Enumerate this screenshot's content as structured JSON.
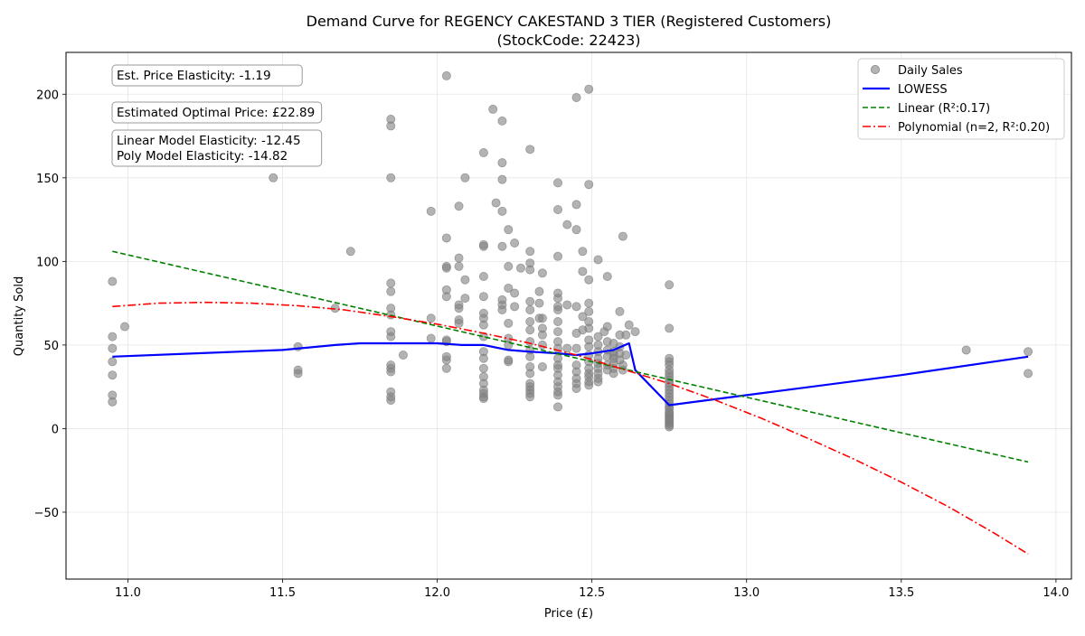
{
  "chart_data": {
    "type": "scatter",
    "title": [
      "Demand Curve for REGENCY CAKESTAND 3 TIER (Registered Customers)",
      "(StockCode: 22423)"
    ],
    "xlabel": "Price (£)",
    "ylabel": "Quantity Sold",
    "xlim": [
      10.8,
      14.05
    ],
    "ylim": [
      -90,
      225
    ],
    "xticks": [
      11.0,
      11.5,
      12.0,
      12.5,
      13.0,
      13.5,
      14.0
    ],
    "xtick_labels": [
      "11.0",
      "11.5",
      "12.0",
      "12.5",
      "13.0",
      "13.5",
      "14.0"
    ],
    "yticks": [
      -50,
      0,
      50,
      100,
      150,
      200
    ],
    "ytick_labels": [
      "−50",
      "0",
      "50",
      "100",
      "150",
      "200"
    ],
    "grid": true,
    "legend_position": "top-right",
    "colors": {
      "scatter": "#808080",
      "lowess": "#0000ff",
      "linear": "#008000",
      "poly": "#ff0000",
      "grid": "#e6e6e6"
    },
    "annotations": [
      [
        "Est. Price Elasticity: -1.19"
      ],
      [
        "Estimated Optimal Price: £22.89"
      ],
      [
        "Linear Model Elasticity: -12.45",
        "Poly Model Elasticity: -14.82"
      ]
    ],
    "series": [
      {
        "name": "Daily Sales",
        "kind": "scatter",
        "points": [
          [
            10.95,
            88
          ],
          [
            10.95,
            55
          ],
          [
            10.95,
            48
          ],
          [
            10.95,
            40
          ],
          [
            10.95,
            32
          ],
          [
            10.95,
            20
          ],
          [
            10.95,
            16
          ],
          [
            10.99,
            61
          ],
          [
            11.47,
            150
          ],
          [
            11.55,
            35
          ],
          [
            11.55,
            33
          ],
          [
            11.55,
            49
          ],
          [
            11.67,
            72
          ],
          [
            11.72,
            106
          ],
          [
            11.85,
            185
          ],
          [
            11.85,
            181
          ],
          [
            11.85,
            150
          ],
          [
            11.85,
            87
          ],
          [
            11.85,
            82
          ],
          [
            11.85,
            72
          ],
          [
            11.85,
            68
          ],
          [
            11.85,
            58
          ],
          [
            11.85,
            55
          ],
          [
            11.85,
            38
          ],
          [
            11.85,
            36
          ],
          [
            11.85,
            34
          ],
          [
            11.85,
            22
          ],
          [
            11.85,
            19
          ],
          [
            11.85,
            17
          ],
          [
            11.89,
            44
          ],
          [
            11.98,
            130
          ],
          [
            11.98,
            66
          ],
          [
            11.98,
            54
          ],
          [
            12.03,
            211
          ],
          [
            12.03,
            114
          ],
          [
            12.03,
            97
          ],
          [
            12.03,
            96
          ],
          [
            12.03,
            83
          ],
          [
            12.03,
            79
          ],
          [
            12.03,
            53
          ],
          [
            12.03,
            52
          ],
          [
            12.03,
            43
          ],
          [
            12.03,
            41
          ],
          [
            12.03,
            36
          ],
          [
            12.07,
            133
          ],
          [
            12.07,
            102
          ],
          [
            12.07,
            97
          ],
          [
            12.07,
            74
          ],
          [
            12.07,
            72
          ],
          [
            12.07,
            65
          ],
          [
            12.07,
            63
          ],
          [
            12.09,
            150
          ],
          [
            12.09,
            89
          ],
          [
            12.09,
            78
          ],
          [
            12.15,
            165
          ],
          [
            12.15,
            110
          ],
          [
            12.15,
            109
          ],
          [
            12.15,
            91
          ],
          [
            12.15,
            79
          ],
          [
            12.15,
            69
          ],
          [
            12.15,
            66
          ],
          [
            12.15,
            62
          ],
          [
            12.15,
            55
          ],
          [
            12.15,
            46
          ],
          [
            12.15,
            42
          ],
          [
            12.15,
            36
          ],
          [
            12.15,
            31
          ],
          [
            12.15,
            27
          ],
          [
            12.15,
            23
          ],
          [
            12.15,
            21
          ],
          [
            12.15,
            19
          ],
          [
            12.15,
            18
          ],
          [
            12.18,
            191
          ],
          [
            12.19,
            135
          ],
          [
            12.21,
            184
          ],
          [
            12.21,
            159
          ],
          [
            12.21,
            149
          ],
          [
            12.21,
            130
          ],
          [
            12.21,
            109
          ],
          [
            12.21,
            77
          ],
          [
            12.21,
            74
          ],
          [
            12.21,
            71
          ],
          [
            12.23,
            119
          ],
          [
            12.23,
            97
          ],
          [
            12.23,
            84
          ],
          [
            12.23,
            63
          ],
          [
            12.23,
            54
          ],
          [
            12.23,
            50
          ],
          [
            12.23,
            41
          ],
          [
            12.23,
            40
          ],
          [
            12.25,
            111
          ],
          [
            12.25,
            81
          ],
          [
            12.25,
            73
          ],
          [
            12.27,
            96
          ],
          [
            12.3,
            167
          ],
          [
            12.3,
            106
          ],
          [
            12.3,
            99
          ],
          [
            12.3,
            95
          ],
          [
            12.3,
            76
          ],
          [
            12.3,
            71
          ],
          [
            12.3,
            64
          ],
          [
            12.3,
            59
          ],
          [
            12.3,
            52
          ],
          [
            12.3,
            47
          ],
          [
            12.3,
            43
          ],
          [
            12.3,
            37
          ],
          [
            12.3,
            33
          ],
          [
            12.3,
            27
          ],
          [
            12.3,
            25
          ],
          [
            12.3,
            23
          ],
          [
            12.3,
            21
          ],
          [
            12.3,
            19
          ],
          [
            12.33,
            82
          ],
          [
            12.33,
            75
          ],
          [
            12.33,
            66
          ],
          [
            12.34,
            93
          ],
          [
            12.34,
            66
          ],
          [
            12.34,
            60
          ],
          [
            12.34,
            56
          ],
          [
            12.34,
            50
          ],
          [
            12.34,
            37
          ],
          [
            12.39,
            147
          ],
          [
            12.39,
            131
          ],
          [
            12.39,
            103
          ],
          [
            12.39,
            81
          ],
          [
            12.39,
            78
          ],
          [
            12.39,
            73
          ],
          [
            12.39,
            71
          ],
          [
            12.39,
            64
          ],
          [
            12.39,
            58
          ],
          [
            12.39,
            52
          ],
          [
            12.39,
            48
          ],
          [
            12.39,
            42
          ],
          [
            12.39,
            38
          ],
          [
            12.39,
            36
          ],
          [
            12.39,
            32
          ],
          [
            12.39,
            28
          ],
          [
            12.39,
            25
          ],
          [
            12.39,
            22
          ],
          [
            12.39,
            20
          ],
          [
            12.39,
            13
          ],
          [
            12.42,
            122
          ],
          [
            12.42,
            74
          ],
          [
            12.42,
            48
          ],
          [
            12.45,
            198
          ],
          [
            12.45,
            134
          ],
          [
            12.45,
            119
          ],
          [
            12.45,
            73
          ],
          [
            12.45,
            57
          ],
          [
            12.45,
            48
          ],
          [
            12.45,
            38
          ],
          [
            12.45,
            34
          ],
          [
            12.45,
            30
          ],
          [
            12.45,
            27
          ],
          [
            12.45,
            24
          ],
          [
            12.47,
            106
          ],
          [
            12.47,
            94
          ],
          [
            12.47,
            67
          ],
          [
            12.47,
            59
          ],
          [
            12.49,
            203
          ],
          [
            12.49,
            146
          ],
          [
            12.49,
            89
          ],
          [
            12.49,
            75
          ],
          [
            12.49,
            70
          ],
          [
            12.49,
            64
          ],
          [
            12.49,
            60
          ],
          [
            12.49,
            53
          ],
          [
            12.49,
            49
          ],
          [
            12.49,
            44
          ],
          [
            12.49,
            40
          ],
          [
            12.49,
            36
          ],
          [
            12.49,
            33
          ],
          [
            12.49,
            31
          ],
          [
            12.49,
            28
          ],
          [
            12.49,
            26
          ],
          [
            12.52,
            101
          ],
          [
            12.52,
            55
          ],
          [
            12.52,
            50
          ],
          [
            12.52,
            46
          ],
          [
            12.52,
            42
          ],
          [
            12.52,
            39
          ],
          [
            12.52,
            36
          ],
          [
            12.52,
            33
          ],
          [
            12.52,
            30
          ],
          [
            12.52,
            28
          ],
          [
            12.54,
            58
          ],
          [
            12.55,
            91
          ],
          [
            12.55,
            61
          ],
          [
            12.55,
            52
          ],
          [
            12.55,
            47
          ],
          [
            12.55,
            43
          ],
          [
            12.55,
            38
          ],
          [
            12.55,
            35
          ],
          [
            12.57,
            51
          ],
          [
            12.57,
            46
          ],
          [
            12.57,
            44
          ],
          [
            12.57,
            42
          ],
          [
            12.57,
            39
          ],
          [
            12.57,
            36
          ],
          [
            12.57,
            33
          ],
          [
            12.59,
            70
          ],
          [
            12.59,
            56
          ],
          [
            12.59,
            49
          ],
          [
            12.59,
            45
          ],
          [
            12.59,
            41
          ],
          [
            12.6,
            115
          ],
          [
            12.6,
            38
          ],
          [
            12.6,
            35
          ],
          [
            12.61,
            56
          ],
          [
            12.61,
            44
          ],
          [
            12.62,
            62
          ],
          [
            12.64,
            58
          ],
          [
            12.75,
            86
          ],
          [
            12.75,
            60
          ],
          [
            12.75,
            42
          ],
          [
            12.75,
            40
          ],
          [
            12.75,
            38
          ],
          [
            12.75,
            35
          ],
          [
            12.75,
            33
          ],
          [
            12.75,
            31
          ],
          [
            12.75,
            29
          ],
          [
            12.75,
            27
          ],
          [
            12.75,
            25
          ],
          [
            12.75,
            23
          ],
          [
            12.75,
            21
          ],
          [
            12.75,
            19
          ],
          [
            12.75,
            17
          ],
          [
            12.75,
            15
          ],
          [
            12.75,
            13
          ],
          [
            12.75,
            12
          ],
          [
            12.75,
            10
          ],
          [
            12.75,
            9
          ],
          [
            12.75,
            8
          ],
          [
            12.75,
            7
          ],
          [
            12.75,
            6
          ],
          [
            12.75,
            5
          ],
          [
            12.75,
            4
          ],
          [
            12.75,
            3
          ],
          [
            12.75,
            2
          ],
          [
            12.75,
            1
          ],
          [
            13.71,
            47
          ],
          [
            13.91,
            46
          ],
          [
            13.91,
            33
          ]
        ]
      },
      {
        "name": "LOWESS",
        "kind": "line",
        "style": "solid",
        "points": [
          [
            10.95,
            43
          ],
          [
            11.5,
            47
          ],
          [
            11.67,
            50
          ],
          [
            11.75,
            51
          ],
          [
            11.85,
            51
          ],
          [
            12.0,
            51
          ],
          [
            12.08,
            50
          ],
          [
            12.15,
            50
          ],
          [
            12.23,
            47
          ],
          [
            12.3,
            46
          ],
          [
            12.39,
            45
          ],
          [
            12.45,
            44
          ],
          [
            12.5,
            45
          ],
          [
            12.57,
            47
          ],
          [
            12.62,
            51
          ],
          [
            12.64,
            35
          ],
          [
            12.75,
            14
          ],
          [
            13.0,
            20
          ],
          [
            13.5,
            32
          ],
          [
            13.91,
            43
          ]
        ]
      },
      {
        "name": "Linear (R²:0.17)",
        "kind": "line",
        "style": "dashed",
        "points": [
          [
            10.95,
            106
          ],
          [
            13.91,
            -20
          ]
        ]
      },
      {
        "name": "Polynomial (n=2, R²:0.20)",
        "kind": "line",
        "style": "dashdot",
        "points": [
          [
            10.95,
            73
          ],
          [
            11.1,
            75
          ],
          [
            11.25,
            75.5
          ],
          [
            11.4,
            75
          ],
          [
            11.55,
            73.5
          ],
          [
            11.7,
            71
          ],
          [
            11.85,
            67
          ],
          [
            12.0,
            62.5
          ],
          [
            12.15,
            57
          ],
          [
            12.3,
            51
          ],
          [
            12.45,
            44
          ],
          [
            12.6,
            35.5
          ],
          [
            12.75,
            27
          ],
          [
            12.9,
            17
          ],
          [
            13.05,
            6
          ],
          [
            13.2,
            -6
          ],
          [
            13.35,
            -18.5
          ],
          [
            13.5,
            -32
          ],
          [
            13.65,
            -46.5
          ],
          [
            13.8,
            -62.5
          ],
          [
            13.91,
            -75
          ]
        ]
      }
    ]
  }
}
